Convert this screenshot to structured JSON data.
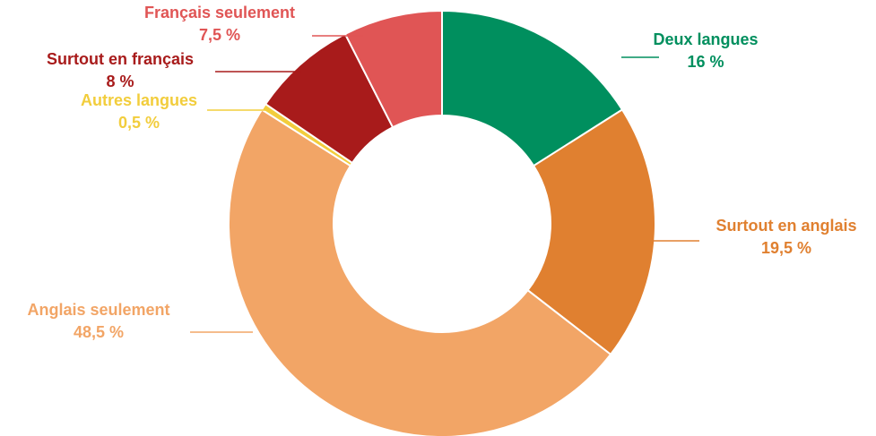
{
  "chart_data": {
    "type": "pie",
    "donut": true,
    "unit": "%",
    "slices": [
      {
        "label": "Deux langues",
        "value": 16,
        "value_label": "16 %",
        "color": "#008f5e"
      },
      {
        "label": "Surtout en anglais",
        "value": 19.5,
        "value_label": "19,5 %",
        "color": "#e08030"
      },
      {
        "label": "Anglais seulement",
        "value": 48.5,
        "value_label": "48,5 %",
        "color": "#f2a566"
      },
      {
        "label": "Autres langues",
        "value": 0.5,
        "value_label": "0,5 %",
        "color": "#f2cd3c"
      },
      {
        "label": "Surtout en français",
        "value": 8,
        "value_label": "8 %",
        "color": "#a81b1b"
      },
      {
        "label": "Français seulement",
        "value": 7.5,
        "value_label": "7,5 %",
        "color": "#e05555"
      }
    ]
  }
}
